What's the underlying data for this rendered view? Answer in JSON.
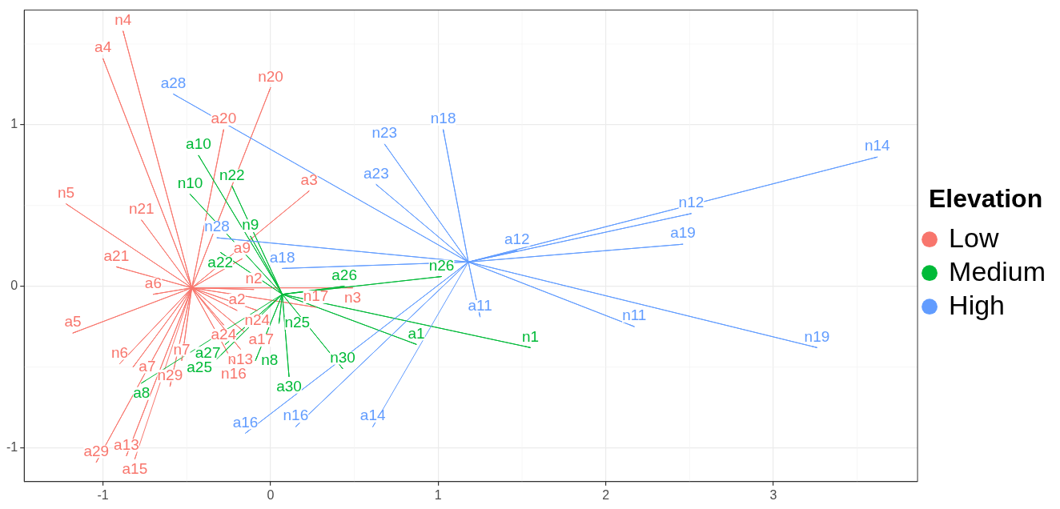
{
  "chart_data": {
    "type": "line",
    "legend_title": "Elevation",
    "legend": "right",
    "grid": true,
    "marker": "none",
    "line_style": "solid",
    "xlim": [
      -1.47,
      3.86
    ],
    "ylim": [
      -1.21,
      1.71
    ],
    "xticks": [
      -1,
      0,
      1,
      2,
      3
    ],
    "yticks": [
      -1,
      0,
      1
    ],
    "series": [
      {
        "name": "Low",
        "color": "#f8766d",
        "x": [
          -0.47,
          -0.88,
          -0.47,
          -1.0,
          -0.47,
          0.0,
          -0.47,
          -0.28,
          -0.47,
          0.23,
          -0.47,
          -1.22,
          -0.47,
          -0.77,
          -0.47,
          -0.17,
          -0.47,
          -0.92,
          -0.47,
          -0.7,
          -0.47,
          -0.1,
          -0.47,
          0.49,
          -0.47,
          0.27,
          -0.47,
          -1.18,
          -0.47,
          -0.2,
          -0.47,
          -0.08,
          -0.47,
          -0.28,
          -0.47,
          -0.16,
          -0.47,
          -0.18,
          -0.47,
          -0.53,
          -0.47,
          -0.22,
          -0.47,
          -0.9,
          -0.47,
          -0.82,
          -0.47,
          -0.6,
          -0.47,
          -1.04,
          -0.47,
          -0.86,
          -0.47,
          -0.81
        ],
        "values": [
          -0.01,
          1.58,
          -0.01,
          1.41,
          -0.01,
          1.23,
          -0.01,
          0.97,
          -0.01,
          0.59,
          -0.01,
          0.51,
          -0.01,
          0.41,
          -0.01,
          0.17,
          -0.01,
          0.12,
          -0.01,
          -0.05,
          -0.01,
          -0.02,
          -0.01,
          -0.01,
          -0.01,
          -0.13,
          -0.01,
          -0.29,
          -0.01,
          -0.15,
          -0.01,
          -0.15,
          -0.01,
          -0.24,
          -0.01,
          -0.28,
          -0.01,
          -0.39,
          -0.01,
          -0.46,
          -0.01,
          -0.48,
          -0.01,
          -0.48,
          -0.01,
          -0.5,
          -0.01,
          -0.62,
          -0.01,
          -1.09,
          -0.01,
          -1.05,
          -0.01,
          -1.07
        ],
        "value_labels": [
          null,
          "n4",
          null,
          "a4",
          null,
          "n20",
          null,
          "a20",
          null,
          "a3",
          null,
          "n5",
          null,
          "n21",
          null,
          "a9",
          null,
          "a21",
          null,
          "a6",
          null,
          "n2",
          null,
          "n3",
          null,
          "n17",
          null,
          "a5",
          null,
          "a2",
          null,
          "n24",
          null,
          "a24",
          null,
          "a17",
          null,
          "n13",
          null,
          "n7",
          null,
          "n16",
          null,
          "n6",
          null,
          "a7",
          null,
          "n29",
          null,
          "a29",
          null,
          "a13",
          null,
          "a15"
        ]
      },
      {
        "name": "Medium",
        "color": "#00ba38",
        "x": [
          0.07,
          -0.43,
          0.07,
          -0.48,
          0.07,
          -0.23,
          0.07,
          -0.12,
          0.07,
          -0.3,
          0.07,
          0.44,
          0.07,
          1.02,
          0.07,
          0.05,
          0.07,
          0.87,
          0.07,
          1.55,
          0.07,
          -0.27,
          0.07,
          -0.32,
          0.07,
          -0.09,
          0.07,
          0.11,
          0.07,
          0.43,
          0.07,
          -0.77
        ],
        "values": [
          -0.05,
          0.81,
          -0.05,
          0.57,
          -0.05,
          0.62,
          -0.05,
          0.31,
          -0.05,
          0.21,
          -0.05,
          0.0,
          -0.05,
          0.06,
          -0.05,
          -0.23,
          -0.05,
          -0.36,
          -0.05,
          -0.38,
          -0.05,
          -0.36,
          -0.05,
          -0.45,
          -0.05,
          -0.46,
          -0.05,
          -0.56,
          -0.05,
          -0.51,
          -0.05,
          -0.6
        ],
        "value_labels": [
          null,
          "a10",
          null,
          "n10",
          null,
          "n22",
          null,
          "n9",
          null,
          "a22",
          null,
          "a26",
          null,
          "n26",
          null,
          "n25",
          null,
          "a1",
          null,
          "n1",
          null,
          "a27",
          null,
          "a25",
          null,
          "n8",
          null,
          "a30",
          null,
          "n30",
          null,
          "a8"
        ]
      },
      {
        "name": "High",
        "color": "#619cff",
        "x": [
          1.18,
          -0.58,
          1.18,
          0.68,
          1.18,
          1.03,
          1.18,
          0.63,
          1.18,
          3.62,
          1.18,
          2.51,
          1.18,
          2.46,
          1.18,
          1.47,
          1.18,
          -0.32,
          1.18,
          0.07,
          1.18,
          1.25,
          1.18,
          2.17,
          1.18,
          3.26,
          1.18,
          -0.15,
          1.18,
          0.15,
          1.18,
          0.61
        ],
        "values": [
          0.15,
          1.19,
          0.15,
          0.88,
          0.15,
          0.97,
          0.15,
          0.63,
          0.15,
          0.8,
          0.15,
          0.45,
          0.15,
          0.26,
          0.15,
          0.22,
          0.15,
          0.3,
          0.15,
          0.11,
          0.15,
          -0.19,
          0.15,
          -0.25,
          0.15,
          -0.38,
          0.15,
          -0.91,
          0.15,
          -0.87,
          0.15,
          -0.87
        ],
        "value_labels": [
          null,
          "a28",
          null,
          "n23",
          null,
          "n18",
          null,
          "a23",
          null,
          "n14",
          null,
          "n12",
          null,
          "a19",
          null,
          "a12",
          null,
          "n28",
          null,
          "a18",
          null,
          "a11",
          null,
          "n11",
          null,
          "n19",
          null,
          "a16",
          null,
          "n16",
          null,
          "a14"
        ]
      }
    ]
  }
}
